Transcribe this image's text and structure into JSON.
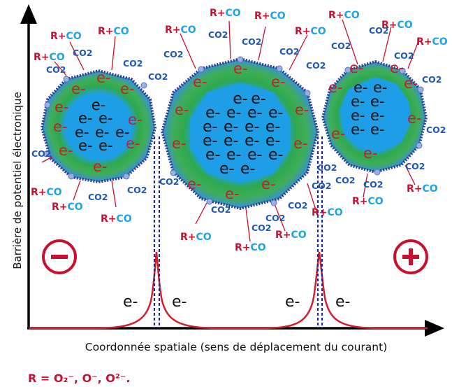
{
  "y_axis_label": "Barrière de potentiel électronique",
  "x_axis_label": "Coordonnée spatiale (sens de déplacement du courant)",
  "electron": "e-",
  "reaction": {
    "r": "R+",
    "co": "CO",
    "co2": "CO2"
  },
  "legend": "R = O₂⁻, O⁻, O²⁻.",
  "negative_sign": "−",
  "positive_sign": "+",
  "colors": {
    "red": "#c8102e",
    "light_blue": "#1aa6e6",
    "dark_blue": "#1f57b6",
    "green": "#2fa84f",
    "core_blue": "#1e9ee6"
  }
}
